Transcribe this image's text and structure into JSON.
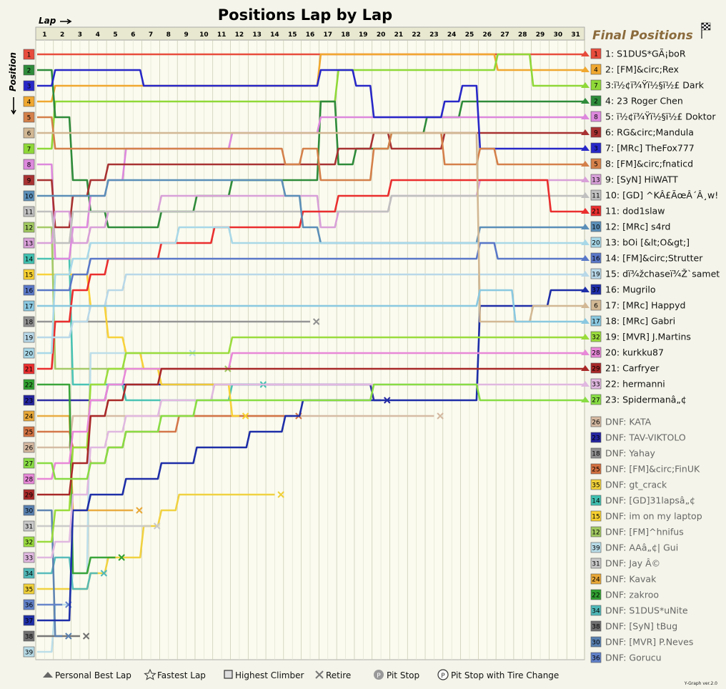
{
  "chart_data": {
    "type": "line",
    "title": "Positions Lap by Lap",
    "x_label": "Lap",
    "y_label": "Position",
    "laps": [
      "1",
      "2",
      "3",
      "4",
      "5",
      "6",
      "7",
      "8",
      "9",
      "10",
      "11",
      "12",
      "13",
      "14",
      "15",
      "16",
      "17",
      "18",
      "19",
      "20",
      "21",
      "22",
      "23",
      "24",
      "25",
      "26",
      "27",
      "28",
      "29",
      "30",
      "31"
    ],
    "positions": [
      "1",
      "2",
      "3",
      "4",
      "5",
      "6",
      "7",
      "8",
      "9",
      "10",
      "11",
      "12",
      "13",
      "14",
      "15",
      "16",
      "17",
      "18",
      "19",
      "20",
      "21",
      "22",
      "23",
      "24",
      "25",
      "26",
      "27",
      "28",
      "29",
      "30",
      "31",
      "32",
      "33",
      "34",
      "35",
      "36",
      "37",
      "38",
      "39"
    ],
    "final_positions_title": "Final Positions",
    "finishers": [
      {
        "grid": "1",
        "label": "1: S1DUS*GÃ¡boR",
        "color": "#e74c3c",
        "pos": [
          1,
          1,
          1,
          1,
          1,
          1,
          1,
          1,
          1,
          1,
          1,
          1,
          1,
          1,
          1,
          1,
          1,
          1,
          1,
          1,
          1,
          1,
          1,
          1,
          1,
          1,
          1,
          1,
          1,
          1,
          1
        ]
      },
      {
        "grid": "4",
        "label": "2: [FM]&circ;Rex",
        "color": "#f0a830",
        "pos": [
          4,
          3,
          3,
          3,
          3,
          3,
          3,
          3,
          3,
          3,
          3,
          3,
          3,
          3,
          3,
          3,
          1,
          1,
          1,
          1,
          1,
          1,
          1,
          1,
          1,
          1,
          2,
          2,
          2,
          2,
          2
        ]
      },
      {
        "grid": "7",
        "label": "3:ï½¢ï¾Ÿï½§ï½£ Dark",
        "color": "#8fd838",
        "pos": [
          7,
          4,
          4,
          4,
          4,
          4,
          4,
          4,
          4,
          4,
          4,
          4,
          4,
          4,
          4,
          4,
          4,
          2,
          2,
          2,
          2,
          2,
          2,
          2,
          2,
          2,
          1,
          1,
          3,
          3,
          3
        ]
      },
      {
        "grid": "2",
        "label": "4: 23 Roger Chen",
        "color": "#2e8b3a",
        "pos": [
          2,
          5,
          9,
          11,
          12,
          12,
          12,
          11,
          11,
          10,
          10,
          9,
          9,
          9,
          9,
          9,
          4,
          8,
          7,
          7,
          6,
          6,
          5,
          5,
          4,
          4,
          4,
          4,
          4,
          4,
          4
        ]
      },
      {
        "grid": "8",
        "label": "5: ï½¢ï¾Ÿï½§ï½£ Doktor",
        "color": "#dd88dd",
        "pos": [
          8,
          14,
          12,
          10,
          9,
          7,
          7,
          7,
          7,
          7,
          7,
          6,
          6,
          6,
          6,
          6,
          5,
          5,
          5,
          5,
          5,
          5,
          5,
          5,
          5,
          5,
          5,
          5,
          5,
          5,
          5
        ]
      },
      {
        "grid": "9",
        "label": "6: RG&circ;Mandula",
        "color": "#a83232",
        "pos": [
          9,
          12,
          10,
          9,
          8,
          8,
          8,
          8,
          8,
          8,
          8,
          8,
          8,
          8,
          8,
          8,
          8,
          7,
          7,
          6,
          7,
          7,
          7,
          6,
          6,
          6,
          6,
          6,
          6,
          6,
          6
        ]
      },
      {
        "grid": "3",
        "label": "7: [MRc] TheFox777",
        "color": "#2828c8",
        "pos": [
          3,
          2,
          2,
          2,
          2,
          2,
          3,
          3,
          3,
          3,
          3,
          3,
          3,
          3,
          3,
          3,
          2,
          2,
          3,
          5,
          5,
          5,
          5,
          4,
          3,
          7,
          7,
          7,
          7,
          7,
          7
        ]
      },
      {
        "grid": "5",
        "label": "8: [FM]&circ;fnaticd",
        "color": "#d4804a",
        "pos": [
          5,
          7,
          7,
          7,
          7,
          7,
          7,
          7,
          7,
          7,
          7,
          7,
          7,
          7,
          8,
          7,
          9,
          9,
          9,
          7,
          6,
          6,
          6,
          8,
          8,
          7,
          8,
          8,
          8,
          8,
          8
        ]
      },
      {
        "grid": "13",
        "label": "9: [SyN] HiWATT",
        "color": "#d8a0d8",
        "pos": [
          13,
          11,
          13,
          12,
          11,
          11,
          11,
          10,
          10,
          10,
          10,
          10,
          10,
          10,
          10,
          10,
          12,
          11,
          11,
          11,
          10,
          10,
          10,
          10,
          10,
          9,
          9,
          9,
          9,
          9,
          9
        ]
      },
      {
        "grid": "11",
        "label": "10: [GD] ^KÂ£ÃœÂ´Â¸w!",
        "color": "#c0c0c0",
        "pos": [
          11,
          13,
          11,
          11,
          11,
          11,
          11,
          11,
          11,
          11,
          11,
          11,
          11,
          11,
          11,
          11,
          11,
          11,
          11,
          11,
          10,
          10,
          10,
          10,
          10,
          10,
          10,
          10,
          10,
          10,
          10
        ]
      },
      {
        "grid": "21",
        "label": "11: dod1slaw",
        "color": "#ea2e2e",
        "pos": [
          21,
          18,
          16,
          15,
          14,
          14,
          14,
          13,
          13,
          13,
          12,
          12,
          12,
          12,
          12,
          11,
          11,
          10,
          10,
          10,
          9,
          9,
          9,
          9,
          9,
          9,
          9,
          9,
          9,
          11,
          11
        ]
      },
      {
        "grid": "10",
        "label": "12: [MRc] s4rd",
        "color": "#5b8fb8",
        "pos": [
          10,
          10,
          10,
          10,
          9,
          9,
          9,
          9,
          9,
          9,
          9,
          9,
          9,
          9,
          10,
          12,
          13,
          13,
          13,
          13,
          13,
          13,
          13,
          13,
          13,
          12,
          12,
          12,
          12,
          12,
          12
        ]
      },
      {
        "grid": "20",
        "label": "13: bOi [&lt;O&gt;]",
        "color": "#a8d8e8",
        "pos": [
          20,
          15,
          14,
          13,
          13,
          13,
          13,
          13,
          12,
          12,
          12,
          13,
          13,
          13,
          13,
          13,
          13,
          13,
          13,
          13,
          13,
          13,
          13,
          13,
          13,
          13,
          13,
          13,
          13,
          13,
          13
        ]
      },
      {
        "grid": "16",
        "label": "14: [FM]&circ;Strutter",
        "color": "#5a78c8",
        "pos": [
          16,
          16,
          15,
          14,
          14,
          14,
          14,
          14,
          14,
          14,
          14,
          14,
          14,
          14,
          14,
          14,
          14,
          14,
          14,
          14,
          14,
          14,
          14,
          14,
          14,
          13,
          14,
          14,
          14,
          14,
          14
        ]
      },
      {
        "grid": "19",
        "label": "15: dï¾žchaseï¾Ž`samet",
        "color": "#b8d8e8",
        "pos": [
          19,
          19,
          18,
          17,
          16,
          15,
          15,
          15,
          15,
          15,
          15,
          15,
          15,
          15,
          15,
          15,
          15,
          15,
          15,
          15,
          15,
          15,
          15,
          15,
          15,
          15,
          15,
          15,
          15,
          15,
          15
        ]
      },
      {
        "grid": "37",
        "label": "16: Mugrilo",
        "color": "#1e2ea8",
        "pos": [
          37,
          37,
          30,
          29,
          29,
          28,
          28,
          27,
          27,
          26,
          26,
          26,
          25,
          25,
          24,
          23,
          23,
          23,
          23,
          23,
          23,
          23,
          23,
          23,
          23,
          17,
          17,
          17,
          17,
          16,
          16
        ]
      },
      {
        "grid": "6",
        "label": "17: [MRc] Happyd",
        "color": "#d2b894",
        "pos": [
          6,
          6,
          6,
          6,
          6,
          6,
          6,
          6,
          6,
          6,
          6,
          6,
          6,
          6,
          6,
          6,
          6,
          6,
          6,
          6,
          6,
          6,
          6,
          6,
          6,
          18,
          18,
          18,
          17,
          17,
          17
        ]
      },
      {
        "grid": "17",
        "label": "18: [MRc] Gabri",
        "color": "#8ac8e0",
        "pos": [
          17,
          17,
          17,
          17,
          17,
          17,
          17,
          17,
          17,
          17,
          17,
          17,
          17,
          17,
          17,
          17,
          17,
          17,
          17,
          17,
          17,
          17,
          17,
          17,
          17,
          16,
          16,
          18,
          18,
          18,
          18
        ]
      },
      {
        "grid": "32",
        "label": "19: [MVR] J.Martins",
        "color": "#9adc3c",
        "pos": [
          32,
          30,
          26,
          22,
          21,
          20,
          20,
          20,
          20,
          20,
          20,
          19,
          19,
          19,
          19,
          19,
          19,
          19,
          19,
          19,
          19,
          19,
          19,
          19,
          19,
          19,
          19,
          19,
          19,
          19,
          19
        ]
      },
      {
        "grid": "28",
        "label": "20: kurkku87",
        "color": "#e888d8",
        "pos": [
          28,
          27,
          25,
          23,
          22,
          21,
          21,
          21,
          21,
          21,
          21,
          20,
          20,
          20,
          20,
          20,
          20,
          20,
          20,
          20,
          20,
          20,
          20,
          20,
          20,
          20,
          20,
          20,
          20,
          20,
          20
        ]
      },
      {
        "grid": "29",
        "label": "21: Carfryer",
        "color": "#a82828",
        "pos": [
          29,
          29,
          27,
          24,
          23,
          22,
          22,
          21,
          21,
          21,
          21,
          21,
          21,
          21,
          21,
          21,
          21,
          21,
          21,
          21,
          21,
          21,
          21,
          21,
          21,
          21,
          21,
          21,
          21,
          21,
          21
        ]
      },
      {
        "grid": "33",
        "label": "22: hermanni",
        "color": "#e0b8e0",
        "pos": [
          33,
          32,
          29,
          26,
          25,
          24,
          24,
          23,
          23,
          23,
          22,
          22,
          22,
          22,
          22,
          22,
          22,
          22,
          22,
          22,
          22,
          22,
          22,
          22,
          22,
          22,
          22,
          22,
          22,
          22,
          22
        ]
      },
      {
        "grid": "27",
        "label": "23: Spidermanâ„¢",
        "color": "#88dc44",
        "pos": [
          27,
          28,
          28,
          27,
          26,
          25,
          25,
          24,
          24,
          23,
          23,
          23,
          23,
          23,
          23,
          23,
          23,
          23,
          23,
          22,
          22,
          22,
          22,
          22,
          22,
          23,
          23,
          23,
          23,
          23,
          23
        ]
      }
    ],
    "dnf": [
      {
        "grid": "26",
        "label": "DNF: KATA",
        "color": "#d4b8a0",
        "pos": [
          26,
          26,
          24,
          24,
          24,
          24,
          24,
          24,
          24,
          24,
          24,
          24,
          24,
          24,
          24,
          24,
          24,
          24,
          24,
          24,
          24,
          24,
          24
        ]
      },
      {
        "grid": "23",
        "label": "DNF: TAV-VIKTOLO",
        "color": "#2424a0",
        "pos": [
          23,
          23,
          23,
          23,
          22,
          22,
          22,
          22,
          22,
          22,
          22,
          22,
          22,
          22,
          22,
          22,
          22,
          22,
          22,
          23
        ]
      },
      {
        "grid": "18",
        "label": "DNF: Yahay",
        "color": "#909090",
        "pos": [
          18,
          18,
          18,
          18,
          18,
          18,
          18,
          18,
          18,
          18,
          18,
          18,
          18,
          18,
          18,
          18
        ]
      },
      {
        "grid": "25",
        "label": "DNF: [FM]&circ;FinUK",
        "color": "#d27040",
        "pos": [
          25,
          25,
          26,
          27,
          26,
          25,
          25,
          25,
          24,
          24,
          24,
          24,
          24,
          24,
          24
        ]
      },
      {
        "grid": "35",
        "label": "DNF: gt_crack",
        "color": "#f0d038",
        "pos": [
          35,
          35,
          35,
          34,
          33,
          33,
          31,
          30,
          29,
          29,
          29,
          29,
          29,
          29
        ]
      },
      {
        "grid": "14",
        "label": "DNF: [GD]31lapsâ„¢",
        "color": "#40c0b0",
        "pos": [
          14,
          14,
          22,
          22,
          22,
          23,
          23,
          23,
          23,
          23,
          23,
          22,
          22
        ]
      },
      {
        "grid": "15",
        "label": "DNF: im on my laptop",
        "color": "#f8d030",
        "pos": [
          15,
          15,
          15,
          17,
          19,
          20,
          21,
          22,
          22,
          22,
          22,
          24
        ]
      },
      {
        "grid": "12",
        "label": "DNF: [FM]^hnifus",
        "color": "#a0c860",
        "pos": [
          12,
          21,
          21,
          21,
          21,
          21,
          21,
          21,
          21,
          21,
          21
        ]
      },
      {
        "grid": "39",
        "label": "DNF: AAâ„¢| Gui",
        "color": "#b8dce8",
        "pos": [
          39,
          36,
          34,
          20,
          20,
          20,
          20,
          20,
          20
        ]
      },
      {
        "grid": "31",
        "label": "DNF: Jay Â©",
        "color": "#c8c8c8",
        "pos": [
          31,
          31,
          31,
          31,
          31,
          31,
          31
        ]
      },
      {
        "grid": "24",
        "label": "DNF: Kavak",
        "color": "#e8a838",
        "pos": [
          24,
          24,
          30,
          30,
          30,
          30
        ]
      },
      {
        "grid": "22",
        "label": "DNF: zakroo",
        "color": "#30a030",
        "pos": [
          22,
          22,
          34,
          33,
          33
        ]
      },
      {
        "grid": "34",
        "label": "DNF: S1DUS*uNite",
        "color": "#50b8b8",
        "pos": [
          34,
          33,
          35,
          34
        ]
      },
      {
        "grid": "38",
        "label": "DNF: [SyN] tBug",
        "color": "#707070",
        "pos": [
          38,
          38,
          38
        ]
      },
      {
        "grid": "30",
        "label": "DNF: [MVR] P.Neves",
        "color": "#5880b0",
        "pos": [
          30,
          38
        ]
      },
      {
        "grid": "36",
        "label": "DNF: Gorucu",
        "color": "#6080c8",
        "pos": [
          36,
          36
        ]
      }
    ],
    "legend": {
      "personal_best": "Personal Best Lap",
      "fastest": "Fastest Lap",
      "climber": "Highest Climber",
      "retire": "Retire",
      "pit": "Pit Stop",
      "pit_tire": "Pit Stop with Tire Change"
    },
    "version": "Y-Graph ver.2.0"
  }
}
